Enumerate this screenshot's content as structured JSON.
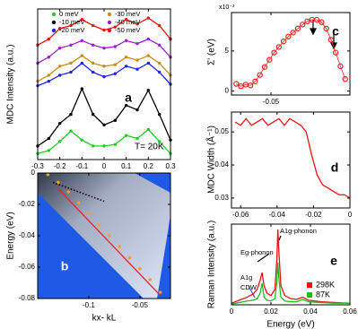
{
  "chart_data": [
    {
      "type": "line",
      "label": "a",
      "ylabel": "MDC Intensity (a.u.)",
      "annotations": [
        "T= 20K"
      ],
      "x": [
        -0.3,
        -0.25,
        -0.2,
        -0.15,
        -0.1,
        -0.05,
        0,
        0.05,
        0.1,
        0.15,
        0.2,
        0.25,
        0.3
      ],
      "xlim": [
        -0.3,
        0.3
      ],
      "xticks": [
        -0.3,
        -0.2,
        -0.1,
        0,
        0.1,
        0.2,
        0.3
      ],
      "ylim": [
        0,
        10
      ],
      "series": [
        {
          "name": "0 meV",
          "color": "#22cc22",
          "mode": "lines+markers",
          "values": [
            0.4,
            0.6,
            1.2,
            1.9,
            1.3,
            0.9,
            0.9,
            1.0,
            1.6,
            1.4,
            2.0,
            1.2,
            0.4
          ]
        },
        {
          "name": "-10 meV",
          "color": "#000000",
          "mode": "lines+markers",
          "values": [
            0.9,
            1.4,
            2.4,
            3.0,
            4.7,
            3.0,
            2.3,
            2.6,
            3.6,
            3.3,
            4.6,
            3.0,
            1.3
          ]
        },
        {
          "name": "-20 meV",
          "color": "#2222ee",
          "mode": "lines+markers",
          "values": [
            4.9,
            5.2,
            5.6,
            5.8,
            6.4,
            5.8,
            5.5,
            5.7,
            6.2,
            6.0,
            6.4,
            5.8,
            5.0
          ]
        },
        {
          "name": "-30 meV",
          "color": "#cc8a1a",
          "mode": "lines+markers",
          "values": [
            5.2,
            5.6,
            6.2,
            6.4,
            6.9,
            6.4,
            6.2,
            6.3,
            6.8,
            6.6,
            6.9,
            6.4,
            5.6
          ]
        },
        {
          "name": "-40 meV",
          "color": "#9922cc",
          "mode": "lines+markers",
          "values": [
            6.4,
            6.8,
            7.4,
            7.6,
            7.9,
            7.6,
            7.4,
            7.5,
            7.9,
            7.7,
            8.0,
            7.6,
            6.8
          ]
        },
        {
          "name": "-50 meV",
          "color": "#ee1111",
          "mode": "lines+markers",
          "values": [
            7.6,
            8.0,
            8.7,
            8.9,
            9.3,
            8.9,
            8.6,
            8.8,
            9.3,
            9.0,
            9.4,
            8.9,
            8.0
          ]
        }
      ]
    },
    {
      "type": "image",
      "label": "b",
      "xlabel": "kx- kL",
      "ylabel": "Energy (eV)",
      "xlim": [
        -0.15,
        -0.02
      ],
      "xticks": [
        -0.1,
        -0.05
      ],
      "ylim": [
        -0.08,
        0
      ],
      "yticks": [
        0,
        -0.02,
        -0.04,
        -0.06,
        -0.08
      ],
      "series": [
        {
          "color": "#f5a020",
          "mode": "markers",
          "x": [
            -0.14,
            -0.13,
            -0.12,
            -0.11,
            -0.1,
            -0.09,
            -0.08,
            -0.07,
            -0.06,
            -0.05,
            -0.04,
            -0.03
          ],
          "values": [
            -0.001,
            -0.006,
            -0.012,
            -0.019,
            -0.026,
            -0.033,
            -0.04,
            -0.047,
            -0.054,
            -0.061,
            -0.068,
            -0.076
          ]
        },
        {
          "color": "#ee2222",
          "mode": "lines",
          "x": [
            -0.13,
            -0.03
          ],
          "values": [
            -0.01,
            -0.078
          ]
        },
        {
          "color": "#000000",
          "mode": "dotted",
          "x": [
            -0.135,
            -0.085
          ],
          "values": [
            -0.006,
            -0.018
          ]
        }
      ]
    },
    {
      "type": "scatter",
      "label": "c",
      "ylabel": "Σ' (eV)",
      "y_multiplier": "x10⁻³",
      "x": [
        -0.072,
        -0.069,
        -0.066,
        -0.063,
        -0.06,
        -0.057,
        -0.054,
        -0.051,
        -0.048,
        -0.045,
        -0.042,
        -0.039,
        -0.036,
        -0.033,
        -0.03,
        -0.027,
        -0.024,
        -0.021,
        -0.018,
        -0.015,
        -0.012,
        -0.009,
        -0.006,
        -0.003
      ],
      "xlim": [
        -0.075,
        0
      ],
      "xticks": [
        -0.05
      ],
      "ylim": [
        -0.5,
        9.8
      ],
      "yticks": [
        0,
        5
      ],
      "series": [
        {
          "color": "#ee2222",
          "mode": "lines+markers",
          "values": [
            0.9,
            0.6,
            0.8,
            0.7,
            1.2,
            2.0,
            3.0,
            3.9,
            4.8,
            5.5,
            6.2,
            6.8,
            7.3,
            7.8,
            8.3,
            8.7,
            8.9,
            8.9,
            8.6,
            7.8,
            6.4,
            4.8,
            3.1,
            1.5
          ]
        }
      ]
    },
    {
      "type": "line",
      "label": "d",
      "ylabel": "MDC Width (Å⁻¹)",
      "x": [
        -0.063,
        -0.06,
        -0.057,
        -0.054,
        -0.051,
        -0.048,
        -0.045,
        -0.042,
        -0.039,
        -0.036,
        -0.033,
        -0.03,
        -0.027,
        -0.024,
        -0.021,
        -0.018,
        -0.015,
        -0.012,
        -0.009,
        -0.006,
        -0.003,
        0
      ],
      "xlim": [
        -0.065,
        0
      ],
      "xticks": [
        -0.06,
        -0.04,
        -0.02,
        0
      ],
      "ylim": [
        0.027,
        0.056
      ],
      "yticks": [
        0.03,
        0.04,
        0.05
      ],
      "series": [
        {
          "color": "#ee1111",
          "mode": "lines",
          "values": [
            0.053,
            0.052,
            0.054,
            0.052,
            0.053,
            0.054,
            0.052,
            0.053,
            0.054,
            0.052,
            0.054,
            0.053,
            0.052,
            0.05,
            0.043,
            0.037,
            0.034,
            0.033,
            0.032,
            0.031,
            0.031,
            0.03
          ]
        }
      ]
    },
    {
      "type": "line",
      "label": "e",
      "xlabel": "Energy (eV)",
      "ylabel": "Raman Intensity (a.u.)",
      "legend": "right",
      "annotations": [
        "A1g",
        "CDW",
        "Eg-phonon",
        "A1g-phonon"
      ],
      "x": [
        0,
        0.004,
        0.008,
        0.011,
        0.013,
        0.0145,
        0.0155,
        0.0165,
        0.018,
        0.02,
        0.022,
        0.023,
        0.0235,
        0.024,
        0.025,
        0.027,
        0.03,
        0.033,
        0.036,
        0.039,
        0.045,
        0.052,
        0.06
      ],
      "xlim": [
        0,
        0.06
      ],
      "xticks": [
        0,
        0.02,
        0.04,
        0.06
      ],
      "ylim": [
        0,
        1.05
      ],
      "series": [
        {
          "name": "298K",
          "color": "#ee1111",
          "mode": "lines",
          "values": [
            0.02,
            0.06,
            0.1,
            0.14,
            0.2,
            0.32,
            0.42,
            0.25,
            0.15,
            0.12,
            0.2,
            0.6,
            0.98,
            0.7,
            0.25,
            0.12,
            0.08,
            0.07,
            0.1,
            0.06,
            0.04,
            0.03,
            0.02
          ]
        },
        {
          "name": "87K",
          "color": "#22bb22",
          "mode": "lines",
          "values": [
            0.01,
            0.03,
            0.05,
            0.06,
            0.08,
            0.15,
            0.28,
            0.1,
            0.06,
            0.05,
            0.08,
            0.3,
            0.55,
            0.35,
            0.1,
            0.05,
            0.04,
            0.04,
            0.07,
            0.04,
            0.03,
            0.02,
            0.02
          ]
        }
      ]
    }
  ]
}
